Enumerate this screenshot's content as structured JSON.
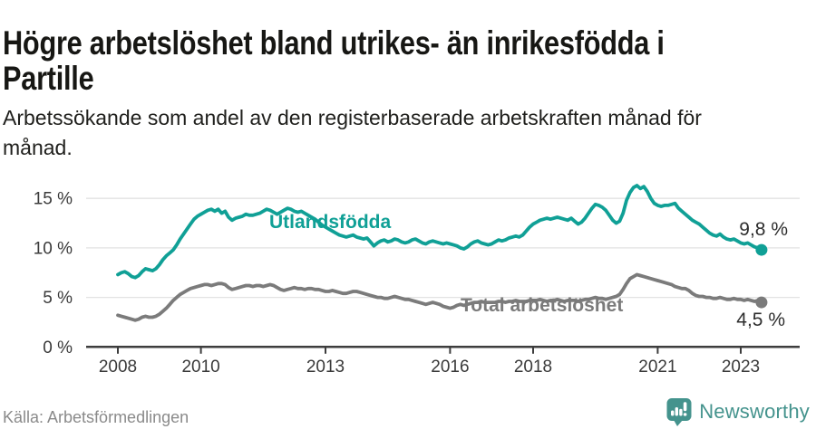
{
  "header": {
    "title_lines": [
      "Högre arbetslöshet bland utrikes- än inrikesfödda i",
      "Partille"
    ],
    "subtitle_lines": [
      "Arbetssökande som andel av den registerbaserade arbetskraften månad för",
      "månad."
    ]
  },
  "footer": {
    "source": "Källa: Arbetsförmedlingen",
    "logo_text": "Newsworthy"
  },
  "colors": {
    "accent_teal": "#10a096",
    "series_gray": "#7b7b7b",
    "logo_teal": "#44938d",
    "axis": "#3d3d3d",
    "grid": "#e2e2e2",
    "value_label": "#2e2e2e"
  },
  "chart_data": {
    "type": "line",
    "title": "Högre arbetslöshet bland utrikes- än inrikesfödda i Partille",
    "subtitle": "Arbetssökande som andel av den registerbaserade arbetskraften månad för månad.",
    "unit": "%",
    "x": {
      "start": "2008-01",
      "end": "2023-07",
      "freq": "monthly",
      "tick_years": [
        2008,
        2010,
        2013,
        2016,
        2018,
        2021,
        2023
      ],
      "tick_labels": [
        "2008",
        "2010",
        "2013",
        "2016",
        "2018",
        "2021",
        "2023"
      ]
    },
    "y": {
      "tick_values": [
        0,
        5,
        10,
        15
      ],
      "tick_labels": [
        "0 %",
        "5 %",
        "10 %",
        "15 %"
      ],
      "ylim": [
        0,
        17.5
      ],
      "grid": true
    },
    "legend_position": "inline-labels",
    "series": [
      {
        "name": "Utlandsfödda",
        "color": "#10a096",
        "end_label": "9,8 %",
        "last_value": 9.8,
        "values": [
          7.3,
          7.5,
          7.6,
          7.4,
          7.1,
          7.0,
          7.2,
          7.6,
          7.9,
          7.8,
          7.7,
          7.9,
          8.3,
          8.8,
          9.2,
          9.5,
          9.8,
          10.3,
          10.9,
          11.4,
          11.9,
          12.4,
          12.9,
          13.2,
          13.4,
          13.6,
          13.8,
          13.9,
          13.7,
          13.9,
          13.5,
          13.7,
          13.1,
          12.8,
          13.0,
          13.1,
          13.2,
          13.4,
          13.3,
          13.3,
          13.4,
          13.5,
          13.7,
          13.9,
          13.8,
          13.6,
          13.4,
          13.6,
          13.8,
          14.0,
          13.9,
          13.7,
          13.6,
          13.7,
          13.5,
          13.3,
          13.1,
          12.9,
          12.6,
          12.3,
          12.1,
          11.9,
          11.7,
          11.5,
          11.3,
          11.2,
          11.1,
          11.2,
          11.3,
          11.1,
          11.0,
          10.9,
          11.0,
          10.6,
          10.2,
          10.5,
          10.7,
          10.8,
          10.6,
          10.7,
          10.9,
          10.8,
          10.6,
          10.5,
          10.6,
          10.8,
          10.9,
          10.7,
          10.5,
          10.4,
          10.6,
          10.7,
          10.6,
          10.5,
          10.4,
          10.5,
          10.4,
          10.3,
          10.2,
          10.0,
          9.9,
          10.1,
          10.4,
          10.6,
          10.7,
          10.5,
          10.4,
          10.3,
          10.4,
          10.6,
          10.8,
          10.7,
          10.8,
          11.0,
          11.1,
          11.2,
          11.1,
          11.3,
          11.7,
          12.1,
          12.4,
          12.6,
          12.8,
          12.9,
          13.0,
          12.9,
          13.0,
          13.1,
          13.0,
          12.9,
          12.8,
          13.0,
          12.7,
          12.4,
          12.6,
          13.0,
          13.5,
          14.0,
          14.4,
          14.3,
          14.1,
          13.8,
          13.3,
          12.8,
          12.5,
          12.7,
          13.5,
          14.8,
          15.6,
          16.1,
          16.3,
          16.0,
          16.2,
          15.7,
          15.0,
          14.5,
          14.3,
          14.2,
          14.3,
          14.3,
          14.4,
          14.5,
          14.0,
          13.7,
          13.4,
          13.1,
          12.8,
          12.6,
          12.4,
          12.1,
          11.8,
          11.5,
          11.3,
          11.2,
          11.4,
          11.1,
          10.9,
          10.8,
          10.9,
          10.7,
          10.5,
          10.4,
          10.5,
          10.3,
          10.1,
          10.0,
          9.8
        ]
      },
      {
        "name": "Total arbetslöshet",
        "color": "#7b7b7b",
        "end_label": "4,5 %",
        "last_value": 4.5,
        "values": [
          3.2,
          3.1,
          3.0,
          2.9,
          2.8,
          2.7,
          2.8,
          3.0,
          3.1,
          3.0,
          3.0,
          3.1,
          3.3,
          3.6,
          3.9,
          4.3,
          4.7,
          5.0,
          5.3,
          5.5,
          5.7,
          5.9,
          6.0,
          6.1,
          6.2,
          6.3,
          6.3,
          6.2,
          6.3,
          6.4,
          6.4,
          6.3,
          6.0,
          5.8,
          5.9,
          6.0,
          6.1,
          6.2,
          6.2,
          6.1,
          6.2,
          6.2,
          6.1,
          6.2,
          6.3,
          6.2,
          6.0,
          5.8,
          5.7,
          5.8,
          5.9,
          6.0,
          5.9,
          5.9,
          5.8,
          5.9,
          5.9,
          5.8,
          5.8,
          5.7,
          5.6,
          5.6,
          5.7,
          5.6,
          5.5,
          5.4,
          5.4,
          5.5,
          5.6,
          5.6,
          5.5,
          5.4,
          5.3,
          5.2,
          5.1,
          5.0,
          5.0,
          4.9,
          4.9,
          5.0,
          5.1,
          5.0,
          4.9,
          4.8,
          4.8,
          4.7,
          4.6,
          4.5,
          4.4,
          4.3,
          4.4,
          4.5,
          4.4,
          4.3,
          4.1,
          4.0,
          3.9,
          4.0,
          4.2,
          4.3,
          4.2,
          4.3,
          4.4,
          4.5,
          4.5,
          4.6,
          4.5,
          4.5,
          4.5,
          4.5,
          4.6,
          4.6,
          4.5,
          4.6,
          4.6,
          4.7,
          4.6,
          4.6,
          4.6,
          4.7,
          4.7,
          4.7,
          4.8,
          4.7,
          4.6,
          4.7,
          4.7,
          4.8,
          4.7,
          4.6,
          4.7,
          4.7,
          4.7,
          4.6,
          4.7,
          4.8,
          4.8,
          4.9,
          5.0,
          4.9,
          4.9,
          4.8,
          4.9,
          5.0,
          5.1,
          5.3,
          5.8,
          6.4,
          6.9,
          7.1,
          7.3,
          7.2,
          7.1,
          7.0,
          6.9,
          6.8,
          6.7,
          6.6,
          6.5,
          6.4,
          6.3,
          6.1,
          6.0,
          5.9,
          5.9,
          5.7,
          5.4,
          5.2,
          5.1,
          5.1,
          5.0,
          5.0,
          4.9,
          4.9,
          5.0,
          4.9,
          4.8,
          4.8,
          4.9,
          4.8,
          4.8,
          4.7,
          4.8,
          4.7,
          4.6,
          4.7,
          4.5
        ]
      }
    ]
  }
}
